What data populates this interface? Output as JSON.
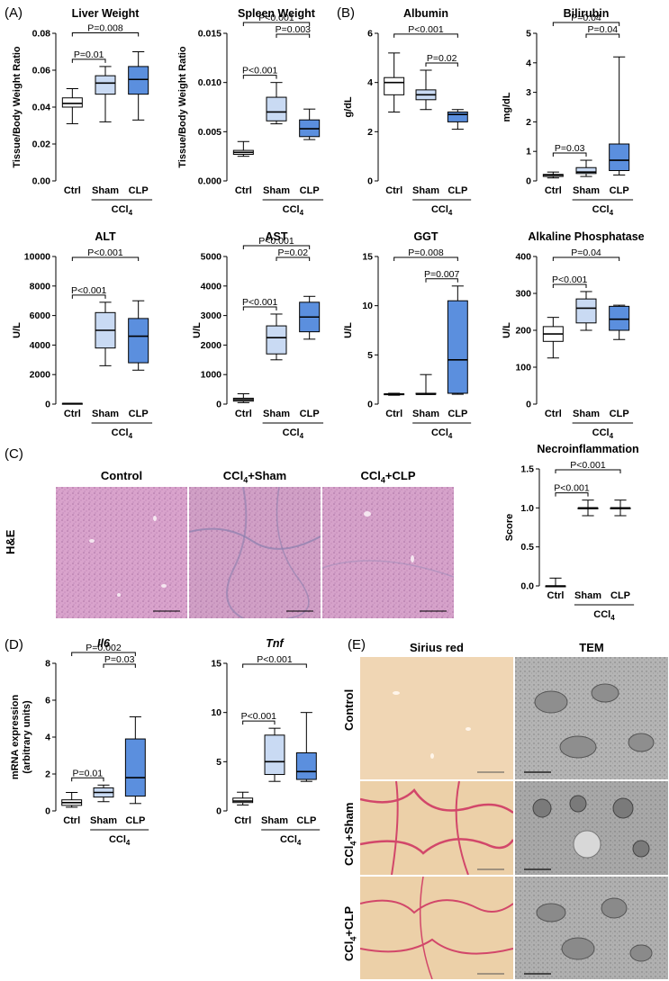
{
  "panels": {
    "A": "(A)",
    "B": "(B)",
    "C": "(C)",
    "D": "(D)",
    "E": "(E)"
  },
  "colors": {
    "ctrl": "#ffffff",
    "sham": "#c9daf3",
    "clp": "#5b8fde",
    "stroke": "#000000"
  },
  "group_labels": {
    "ctrl": "Ctrl",
    "sham": "Sham",
    "clp": "CLP",
    "treatment": "CCl",
    "treatment_sub": "4"
  },
  "histology": {
    "titles": [
      "Control",
      "CCl4+Sham",
      "CCl4+CLP"
    ],
    "stain_label": "H&E"
  },
  "em": {
    "col_titles": [
      "Sirius red",
      "TEM"
    ],
    "row_labels": [
      "Control",
      "CCl4+Sham",
      "CCl4+CLP"
    ]
  },
  "chart_data": [
    {
      "id": "liver-weight",
      "type": "box",
      "title": "Liver Weight",
      "ylabel": "Tissue/Body Weight Ratio",
      "ylim": [
        0,
        0.08
      ],
      "yticks": [
        0.0,
        0.02,
        0.04,
        0.06,
        0.08
      ],
      "decimals": 2,
      "categories": [
        "Ctrl",
        "Sham",
        "CLP"
      ],
      "boxes": [
        {
          "min": 0.031,
          "q1": 0.04,
          "median": 0.042,
          "q3": 0.045,
          "max": 0.05
        },
        {
          "min": 0.032,
          "q1": 0.047,
          "median": 0.053,
          "q3": 0.057,
          "max": 0.062
        },
        {
          "min": 0.033,
          "q1": 0.047,
          "median": 0.055,
          "q3": 0.062,
          "max": 0.07
        }
      ],
      "comparisons": [
        {
          "from": 0,
          "to": 1,
          "label": "P=0.01"
        },
        {
          "from": 0,
          "to": 2,
          "label": "P=0.008"
        }
      ]
    },
    {
      "id": "spleen-weight",
      "type": "box",
      "title": "Spleen Weight",
      "ylabel": "Tissue/Body Weight Ratio",
      "ylim": [
        0,
        0.015
      ],
      "yticks": [
        0.0,
        0.005,
        0.01,
        0.015
      ],
      "decimals": 3,
      "categories": [
        "Ctrl",
        "Sham",
        "CLP"
      ],
      "boxes": [
        {
          "min": 0.0025,
          "q1": 0.0027,
          "median": 0.0029,
          "q3": 0.0031,
          "max": 0.004
        },
        {
          "min": 0.0058,
          "q1": 0.0061,
          "median": 0.007,
          "q3": 0.0085,
          "max": 0.01
        },
        {
          "min": 0.0042,
          "q1": 0.0045,
          "median": 0.0053,
          "q3": 0.0062,
          "max": 0.0073
        }
      ],
      "comparisons": [
        {
          "from": 0,
          "to": 1,
          "label": "P<0.001"
        },
        {
          "from": 1,
          "to": 2,
          "label": "P=0.003"
        },
        {
          "from": 0,
          "to": 2,
          "label": "P<0.001"
        }
      ]
    },
    {
      "id": "albumin",
      "type": "box",
      "title": "Albumin",
      "ylabel": "g/dL",
      "ylim": [
        0,
        6
      ],
      "yticks": [
        0,
        2,
        4,
        6
      ],
      "decimals": 0,
      "categories": [
        "Ctrl",
        "Sham",
        "CLP"
      ],
      "boxes": [
        {
          "min": 2.8,
          "q1": 3.5,
          "median": 4.0,
          "q3": 4.2,
          "max": 5.2
        },
        {
          "min": 2.9,
          "q1": 3.3,
          "median": 3.5,
          "q3": 3.7,
          "max": 4.5
        },
        {
          "min": 2.1,
          "q1": 2.4,
          "median": 2.7,
          "q3": 2.8,
          "max": 2.9
        }
      ],
      "comparisons": [
        {
          "from": 1,
          "to": 2,
          "label": "P=0.02"
        },
        {
          "from": 0,
          "to": 2,
          "label": "P<0.001"
        }
      ]
    },
    {
      "id": "bilirubin",
      "type": "box",
      "title": "Bilirubin",
      "ylabel": "mg/dL",
      "ylim": [
        0,
        5
      ],
      "yticks": [
        0,
        1,
        2,
        3,
        4,
        5
      ],
      "decimals": 0,
      "categories": [
        "Ctrl",
        "Sham",
        "CLP"
      ],
      "boxes": [
        {
          "min": 0.1,
          "q1": 0.15,
          "median": 0.2,
          "q3": 0.22,
          "max": 0.3
        },
        {
          "min": 0.15,
          "q1": 0.25,
          "median": 0.3,
          "q3": 0.45,
          "max": 0.7
        },
        {
          "min": 0.2,
          "q1": 0.35,
          "median": 0.7,
          "q3": 1.25,
          "max": 4.2
        }
      ],
      "comparisons": [
        {
          "from": 0,
          "to": 1,
          "label": "P=0.03"
        },
        {
          "from": 1,
          "to": 2,
          "label": "P=0.04"
        },
        {
          "from": 0,
          "to": 2,
          "label": "P=0.04"
        }
      ]
    },
    {
      "id": "alt",
      "type": "box",
      "title": "ALT",
      "ylabel": "U/L",
      "ylim": [
        0,
        10000
      ],
      "yticks": [
        0,
        2000,
        4000,
        6000,
        8000,
        10000
      ],
      "decimals": 0,
      "categories": [
        "Ctrl",
        "Sham",
        "CLP"
      ],
      "boxes": [
        {
          "min": 20,
          "q1": 30,
          "median": 40,
          "q3": 50,
          "max": 60
        },
        {
          "min": 2600,
          "q1": 3800,
          "median": 5000,
          "q3": 6200,
          "max": 6900
        },
        {
          "min": 2300,
          "q1": 2800,
          "median": 4600,
          "q3": 5800,
          "max": 7000
        }
      ],
      "comparisons": [
        {
          "from": 0,
          "to": 1,
          "label": "P<0.001"
        },
        {
          "from": 0,
          "to": 2,
          "label": "P<0.001"
        }
      ]
    },
    {
      "id": "ast",
      "type": "box",
      "title": "AST",
      "ylabel": "U/L",
      "ylim": [
        0,
        5000
      ],
      "yticks": [
        0,
        1000,
        2000,
        3000,
        4000,
        5000
      ],
      "decimals": 0,
      "categories": [
        "Ctrl",
        "Sham",
        "CLP"
      ],
      "boxes": [
        {
          "min": 50,
          "q1": 100,
          "median": 150,
          "q3": 200,
          "max": 350
        },
        {
          "min": 1500,
          "q1": 1700,
          "median": 2250,
          "q3": 2650,
          "max": 3050
        },
        {
          "min": 2200,
          "q1": 2450,
          "median": 2950,
          "q3": 3450,
          "max": 3650
        }
      ],
      "comparisons": [
        {
          "from": 0,
          "to": 1,
          "label": "P<0.001"
        },
        {
          "from": 1,
          "to": 2,
          "label": "P=0.02"
        },
        {
          "from": 0,
          "to": 2,
          "label": "P<0.001"
        }
      ]
    },
    {
      "id": "ggt",
      "type": "box",
      "title": "GGT",
      "ylabel": "U/L",
      "ylim": [
        0,
        15
      ],
      "yticks": [
        0,
        5,
        10,
        15
      ],
      "decimals": 0,
      "categories": [
        "Ctrl",
        "Sham",
        "CLP"
      ],
      "boxes": [
        {
          "min": 0.9,
          "q1": 0.95,
          "median": 1.0,
          "q3": 1.05,
          "max": 1.1
        },
        {
          "min": 1.0,
          "q1": 1.0,
          "median": 1.0,
          "q3": 1.1,
          "max": 3.0
        },
        {
          "min": 1.0,
          "q1": 1.1,
          "median": 4.5,
          "q3": 10.5,
          "max": 12.0
        }
      ],
      "comparisons": [
        {
          "from": 1,
          "to": 2,
          "label": "P=0.007"
        },
        {
          "from": 0,
          "to": 2,
          "label": "P=0.008"
        }
      ]
    },
    {
      "id": "alkaline-phosphatase",
      "type": "box",
      "title": "Alkaline Phosphatase",
      "ylabel": "U/L",
      "ylim": [
        0,
        400
      ],
      "yticks": [
        0,
        100,
        200,
        300,
        400
      ],
      "decimals": 0,
      "categories": [
        "Ctrl",
        "Sham",
        "CLP"
      ],
      "boxes": [
        {
          "min": 125,
          "q1": 170,
          "median": 190,
          "q3": 210,
          "max": 235
        },
        {
          "min": 200,
          "q1": 220,
          "median": 260,
          "q3": 285,
          "max": 305
        },
        {
          "min": 175,
          "q1": 200,
          "median": 230,
          "q3": 265,
          "max": 268
        }
      ],
      "comparisons": [
        {
          "from": 0,
          "to": 1,
          "label": "P<0.001"
        },
        {
          "from": 0,
          "to": 2,
          "label": "P=0.04"
        }
      ]
    },
    {
      "id": "necroinflammation",
      "type": "box",
      "title": "Necroinflammation",
      "ylabel": "Score",
      "ylim": [
        0,
        1.5
      ],
      "yticks": [
        0.0,
        0.5,
        1.0,
        1.5
      ],
      "decimals": 1,
      "categories": [
        "Ctrl",
        "Sham",
        "CLP"
      ],
      "boxes": [
        {
          "min": 0.0,
          "q1": 0.0,
          "median": 0.0,
          "q3": 0.0,
          "max": 0.1
        },
        {
          "min": 0.9,
          "q1": 1.0,
          "median": 1.0,
          "q3": 1.0,
          "max": 1.1
        },
        {
          "min": 0.9,
          "q1": 1.0,
          "median": 1.0,
          "q3": 1.0,
          "max": 1.1
        }
      ],
      "comparisons": [
        {
          "from": 0,
          "to": 1,
          "label": "P<0.001"
        },
        {
          "from": 0,
          "to": 2,
          "label": "P<0.001"
        }
      ]
    },
    {
      "id": "il6",
      "type": "box",
      "title": "Il6",
      "title_italic": true,
      "ylabel": [
        "mRNA expression",
        "(arbitrary units)"
      ],
      "ylim": [
        0,
        8
      ],
      "yticks": [
        0,
        2,
        4,
        6,
        8
      ],
      "decimals": 0,
      "categories": [
        "Ctrl",
        "Sham",
        "CLP"
      ],
      "boxes": [
        {
          "min": 0.2,
          "q1": 0.3,
          "median": 0.45,
          "q3": 0.6,
          "max": 1.0
        },
        {
          "min": 0.5,
          "q1": 0.75,
          "median": 1.0,
          "q3": 1.25,
          "max": 1.4
        },
        {
          "min": 0.4,
          "q1": 0.8,
          "median": 1.8,
          "q3": 3.9,
          "max": 5.1
        }
      ],
      "comparisons": [
        {
          "from": 0,
          "to": 1,
          "label": "P=0.01"
        },
        {
          "from": 1,
          "to": 2,
          "label": "P=0.03"
        },
        {
          "from": 0,
          "to": 2,
          "label": "P=0.002"
        }
      ]
    },
    {
      "id": "tnf",
      "type": "box",
      "title": "Tnf",
      "title_italic": true,
      "ylabel": "",
      "ylim": [
        0,
        15
      ],
      "yticks": [
        0,
        5,
        10,
        15
      ],
      "decimals": 0,
      "categories": [
        "Ctrl",
        "Sham",
        "CLP"
      ],
      "boxes": [
        {
          "min": 0.6,
          "q1": 0.85,
          "median": 1.0,
          "q3": 1.3,
          "max": 1.9
        },
        {
          "min": 3.0,
          "q1": 3.7,
          "median": 5.0,
          "q3": 7.7,
          "max": 8.4
        },
        {
          "min": 3.0,
          "q1": 3.2,
          "median": 4.0,
          "q3": 5.9,
          "max": 10.0
        }
      ],
      "comparisons": [
        {
          "from": 0,
          "to": 1,
          "label": "P<0.001"
        },
        {
          "from": 0,
          "to": 2,
          "label": "P<0.001"
        }
      ]
    }
  ]
}
